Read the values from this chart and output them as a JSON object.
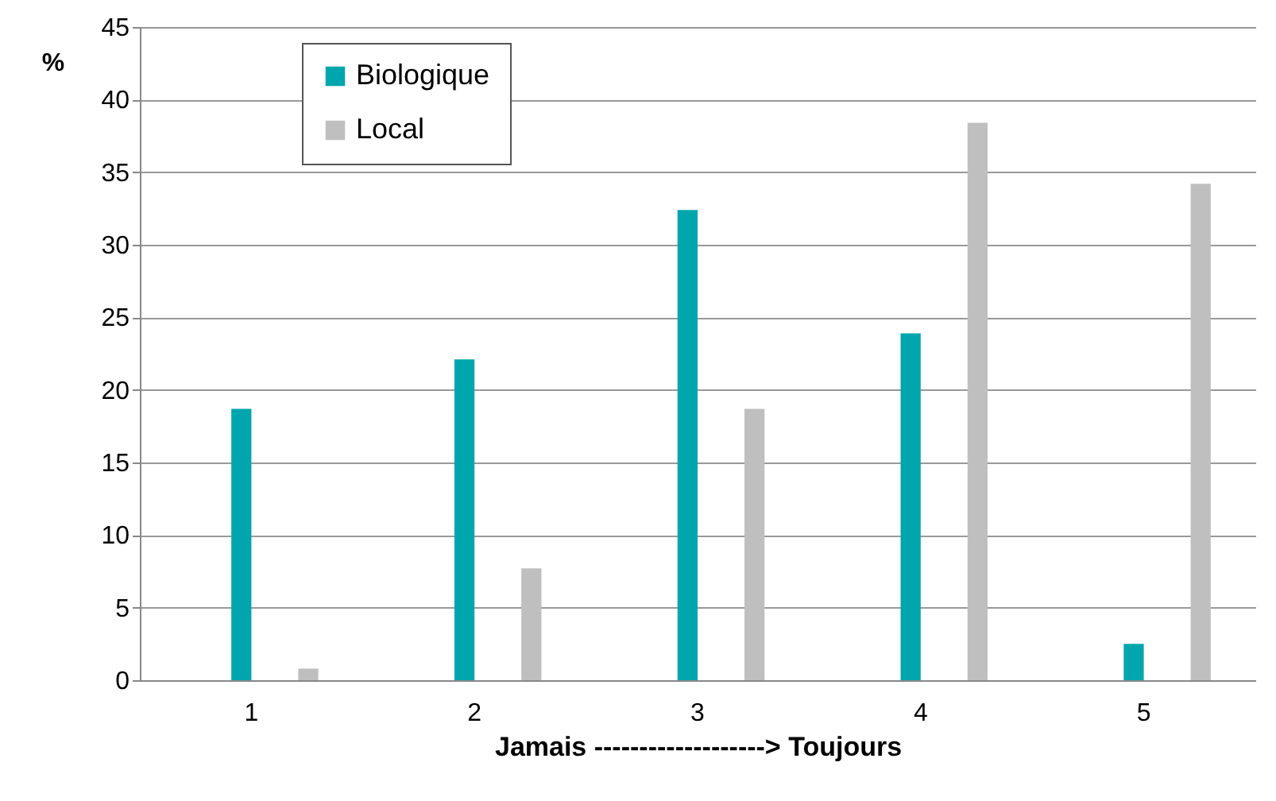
{
  "chart_data": {
    "type": "bar",
    "xlabel": "Jamais -------------------> Toujours",
    "ylabel": "%",
    "categories": [
      "1",
      "2",
      "3",
      "4",
      "5"
    ],
    "series": [
      {
        "name": "Biologique",
        "color": "#00a6ad",
        "values": [
          18.7,
          22.1,
          32.4,
          23.9,
          2.5
        ]
      },
      {
        "name": "Local",
        "color": "#bfbfbf",
        "values": [
          0.8,
          7.7,
          18.7,
          38.4,
          34.2
        ]
      }
    ],
    "ylim": [
      0,
      45
    ],
    "yticks": [
      0,
      5,
      10,
      15,
      20,
      25,
      30,
      35,
      40,
      45
    ],
    "grid": "y",
    "legend": "top left"
  }
}
